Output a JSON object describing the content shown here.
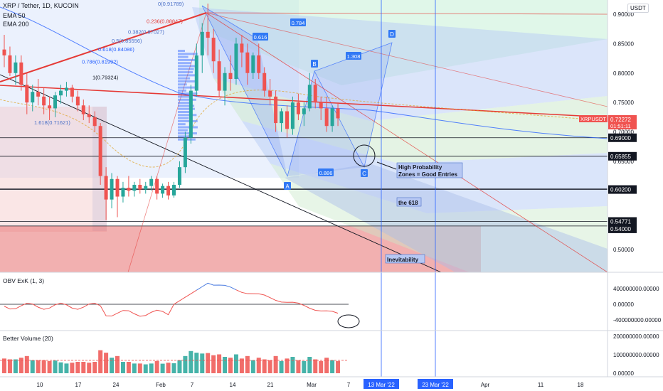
{
  "header": {
    "symbol_line": "XRP / Tether, 1D, KUCOIN",
    "ema50_label": "EMA 50",
    "ema200_label": "EMA 200",
    "currency": "USDT"
  },
  "chart_data": [
    {
      "type": "candlestick",
      "title": "XRP / Tether, 1D, KUCOIN",
      "ylim": [
        0.45,
        0.92
      ],
      "y_ticks": [
        "0.90000",
        "0.85000",
        "0.80000",
        "0.75000",
        "0.70000",
        "0.65000",
        "0.50000"
      ],
      "price_level_labels": [
        {
          "price": 0.69,
          "text": "0.69000"
        },
        {
          "price": 0.65855,
          "text": "0.65855"
        },
        {
          "price": 0.602,
          "text": "0.60200"
        },
        {
          "price": 0.54771,
          "text": "0.54771"
        },
        {
          "price": 0.54,
          "text": "0.54000"
        }
      ],
      "last_price": {
        "symbol": "XRPUSDT",
        "value": "0.72272",
        "countdown": "01:51:11"
      },
      "fib_levels": [
        {
          "price": 0.91789,
          "text": "0(0.91789)"
        },
        {
          "price": 0.88847,
          "text": "0.236(0.88847)"
        },
        {
          "price": 0.87027,
          "text": "0.382(0.87027)"
        },
        {
          "price": 0.85556,
          "text": "0.5(0.85556)"
        },
        {
          "price": 0.84086,
          "text": "0.618(0.84086)"
        },
        {
          "price": 0.81992,
          "text": "0.786(0.81992)"
        },
        {
          "price": 0.79324,
          "text": "1(0.79324)"
        },
        {
          "price": 0.71621,
          "text": "1.618(0.71621)"
        }
      ],
      "pattern_points": [
        "A",
        "B",
        "C",
        "D"
      ],
      "pattern_ratios": [
        "0.616",
        "0.784",
        "1.308",
        "0.886"
      ],
      "annotations": [
        "High Probability\nZones = Good Entries",
        "the 618",
        "Inevitability"
      ],
      "x_ticks": [
        "10",
        "17",
        "24",
        "Feb",
        "7",
        "14",
        "21",
        "Mar",
        "7",
        "Apr",
        "11",
        "18"
      ],
      "x_highlight_labels": [
        "13 Mar '22",
        "23 Mar '22"
      ],
      "ohlc": [
        {
          "o": 0.84,
          "h": 0.865,
          "l": 0.81,
          "c": 0.83
        },
        {
          "o": 0.83,
          "h": 0.845,
          "l": 0.795,
          "c": 0.8
        },
        {
          "o": 0.8,
          "h": 0.83,
          "l": 0.78,
          "c": 0.818
        },
        {
          "o": 0.818,
          "h": 0.83,
          "l": 0.77,
          "c": 0.78
        },
        {
          "o": 0.78,
          "h": 0.8,
          "l": 0.73,
          "c": 0.75
        },
        {
          "o": 0.75,
          "h": 0.78,
          "l": 0.735,
          "c": 0.768
        },
        {
          "o": 0.768,
          "h": 0.79,
          "l": 0.745,
          "c": 0.76
        },
        {
          "o": 0.76,
          "h": 0.775,
          "l": 0.73,
          "c": 0.745
        },
        {
          "o": 0.745,
          "h": 0.76,
          "l": 0.72,
          "c": 0.74
        },
        {
          "o": 0.74,
          "h": 0.768,
          "l": 0.725,
          "c": 0.762
        },
        {
          "o": 0.762,
          "h": 0.78,
          "l": 0.748,
          "c": 0.77
        },
        {
          "o": 0.77,
          "h": 0.785,
          "l": 0.76,
          "c": 0.775
        },
        {
          "o": 0.775,
          "h": 0.78,
          "l": 0.75,
          "c": 0.76
        },
        {
          "o": 0.76,
          "h": 0.77,
          "l": 0.735,
          "c": 0.745
        },
        {
          "o": 0.745,
          "h": 0.755,
          "l": 0.72,
          "c": 0.73
        },
        {
          "o": 0.73,
          "h": 0.745,
          "l": 0.715,
          "c": 0.725
        },
        {
          "o": 0.725,
          "h": 0.735,
          "l": 0.7,
          "c": 0.71
        },
        {
          "o": 0.71,
          "h": 0.715,
          "l": 0.61,
          "c": 0.625
        },
        {
          "o": 0.625,
          "h": 0.64,
          "l": 0.55,
          "c": 0.585
        },
        {
          "o": 0.585,
          "h": 0.63,
          "l": 0.57,
          "c": 0.62
        },
        {
          "o": 0.62,
          "h": 0.625,
          "l": 0.555,
          "c": 0.59
        },
        {
          "o": 0.59,
          "h": 0.615,
          "l": 0.58,
          "c": 0.605
        },
        {
          "o": 0.605,
          "h": 0.625,
          "l": 0.59,
          "c": 0.6
        },
        {
          "o": 0.6,
          "h": 0.615,
          "l": 0.59,
          "c": 0.61
        },
        {
          "o": 0.61,
          "h": 0.62,
          "l": 0.595,
          "c": 0.602
        },
        {
          "o": 0.602,
          "h": 0.615,
          "l": 0.595,
          "c": 0.608
        },
        {
          "o": 0.608,
          "h": 0.625,
          "l": 0.6,
          "c": 0.62
        },
        {
          "o": 0.62,
          "h": 0.625,
          "l": 0.585,
          "c": 0.595
        },
        {
          "o": 0.595,
          "h": 0.612,
          "l": 0.588,
          "c": 0.608
        },
        {
          "o": 0.608,
          "h": 0.615,
          "l": 0.585,
          "c": 0.592
        },
        {
          "o": 0.592,
          "h": 0.615,
          "l": 0.588,
          "c": 0.61
        },
        {
          "o": 0.61,
          "h": 0.65,
          "l": 0.605,
          "c": 0.64
        },
        {
          "o": 0.64,
          "h": 0.7,
          "l": 0.63,
          "c": 0.69
        },
        {
          "o": 0.69,
          "h": 0.78,
          "l": 0.68,
          "c": 0.77
        },
        {
          "o": 0.77,
          "h": 0.85,
          "l": 0.76,
          "c": 0.83
        },
        {
          "o": 0.83,
          "h": 0.885,
          "l": 0.8,
          "c": 0.87
        },
        {
          "o": 0.87,
          "h": 0.918,
          "l": 0.83,
          "c": 0.86
        },
        {
          "o": 0.86,
          "h": 0.875,
          "l": 0.8,
          "c": 0.82
        },
        {
          "o": 0.82,
          "h": 0.84,
          "l": 0.76,
          "c": 0.77
        },
        {
          "o": 0.77,
          "h": 0.81,
          "l": 0.745,
          "c": 0.8
        },
        {
          "o": 0.8,
          "h": 0.83,
          "l": 0.77,
          "c": 0.79
        },
        {
          "o": 0.79,
          "h": 0.86,
          "l": 0.78,
          "c": 0.85
        },
        {
          "o": 0.85,
          "h": 0.865,
          "l": 0.81,
          "c": 0.835
        },
        {
          "o": 0.835,
          "h": 0.85,
          "l": 0.78,
          "c": 0.8
        },
        {
          "o": 0.8,
          "h": 0.835,
          "l": 0.79,
          "c": 0.83
        },
        {
          "o": 0.83,
          "h": 0.85,
          "l": 0.79,
          "c": 0.8
        },
        {
          "o": 0.8,
          "h": 0.81,
          "l": 0.76,
          "c": 0.77
        },
        {
          "o": 0.77,
          "h": 0.79,
          "l": 0.745,
          "c": 0.76
        },
        {
          "o": 0.76,
          "h": 0.77,
          "l": 0.7,
          "c": 0.715
        },
        {
          "o": 0.715,
          "h": 0.74,
          "l": 0.7,
          "c": 0.735
        },
        {
          "o": 0.735,
          "h": 0.745,
          "l": 0.69,
          "c": 0.705
        },
        {
          "o": 0.705,
          "h": 0.76,
          "l": 0.695,
          "c": 0.75
        },
        {
          "o": 0.75,
          "h": 0.765,
          "l": 0.72,
          "c": 0.73
        },
        {
          "o": 0.73,
          "h": 0.75,
          "l": 0.71,
          "c": 0.74
        },
        {
          "o": 0.74,
          "h": 0.8,
          "l": 0.735,
          "c": 0.78
        },
        {
          "o": 0.78,
          "h": 0.79,
          "l": 0.74,
          "c": 0.75
        },
        {
          "o": 0.75,
          "h": 0.76,
          "l": 0.72,
          "c": 0.74
        },
        {
          "o": 0.74,
          "h": 0.76,
          "l": 0.7,
          "c": 0.71
        },
        {
          "o": 0.71,
          "h": 0.745,
          "l": 0.7,
          "c": 0.74
        },
        {
          "o": 0.74,
          "h": 0.75,
          "l": 0.71,
          "c": 0.723
        }
      ]
    },
    {
      "type": "line",
      "title": "OBV ExK (1, 3)",
      "y_ticks": [
        "400000000.00000",
        "0.00000",
        "-400000000.00000"
      ],
      "ylim": [
        -500000000,
        550000000
      ]
    },
    {
      "type": "bar",
      "title": "Better Volume (20)",
      "y_ticks": [
        "200000000.00000",
        "100000000.00000",
        "0.00000"
      ],
      "ylim": [
        0,
        230000000
      ]
    }
  ],
  "colors": {
    "up": "#26a69a",
    "down": "#ef5350",
    "pattern_blue": "#2962ff",
    "label_blue": "#3179f5",
    "ema_red": "#e53935",
    "price_tag": "#f05350"
  }
}
